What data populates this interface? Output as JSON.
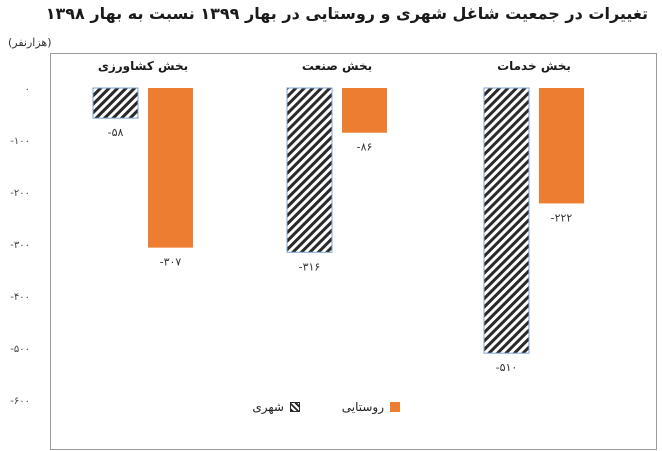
{
  "chart_data": {
    "type": "bar",
    "title": "تغییرات در جمعیت شاغل شهری و روستایی در بهار ۱۳۹۹ نسبت به بهار ۱۳۹۸",
    "unit_label": "(هزارنفر)",
    "categories": [
      "بخش کشاورزی",
      "بخش صنعت",
      "بخش خدمات"
    ],
    "series": [
      {
        "name": "شهری",
        "values": [
          -58,
          -316,
          -510
        ],
        "labels": [
          "-۵۸",
          "-۳۱۶",
          "-۵۱۰"
        ],
        "color": "#2a2a2a",
        "pattern": "hatch"
      },
      {
        "name": "روستایی",
        "values": [
          -307,
          -86,
          -222
        ],
        "labels": [
          "-۳۰۷",
          "-۸۶",
          "-۲۲۲"
        ],
        "color": "#ED7D31"
      }
    ],
    "ylim": [
      -600,
      0
    ],
    "yticks": [
      0,
      -100,
      -200,
      -300,
      -400,
      -500,
      -600
    ],
    "ytick_labels": [
      "۰",
      "-۱۰۰",
      "-۲۰۰",
      "-۳۰۰",
      "-۴۰۰",
      "-۵۰۰",
      "-۶۰۰"
    ],
    "grid": false,
    "legend_position": "bottom-center"
  }
}
